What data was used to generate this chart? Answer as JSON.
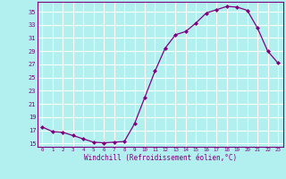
{
  "x": [
    0,
    1,
    2,
    3,
    4,
    5,
    6,
    7,
    8,
    9,
    10,
    11,
    12,
    13,
    14,
    15,
    16,
    17,
    18,
    19,
    20,
    21,
    22,
    23
  ],
  "y": [
    17.5,
    16.8,
    16.7,
    16.2,
    15.7,
    15.2,
    15.1,
    15.2,
    15.3,
    18.0,
    22.0,
    26.0,
    29.5,
    31.5,
    32.0,
    33.3,
    34.8,
    35.3,
    35.8,
    35.7,
    35.2,
    32.5,
    29.0,
    27.2
  ],
  "line_color": "#800080",
  "marker": "D",
  "marker_size": 2,
  "bg_color": "#b2f0f0",
  "grid_color": "#aadddd",
  "xlabel": "Windchill (Refroidissement éolien,°C)",
  "xlabel_color": "#800080",
  "tick_color": "#800080",
  "ylim": [
    14.5,
    36.5
  ],
  "yticks": [
    15,
    17,
    19,
    21,
    23,
    25,
    27,
    29,
    31,
    33,
    35
  ],
  "xlim": [
    -0.5,
    23.5
  ],
  "xticks": [
    0,
    1,
    2,
    3,
    4,
    5,
    6,
    7,
    8,
    9,
    10,
    11,
    12,
    13,
    14,
    15,
    16,
    17,
    18,
    19,
    20,
    21,
    22,
    23
  ]
}
